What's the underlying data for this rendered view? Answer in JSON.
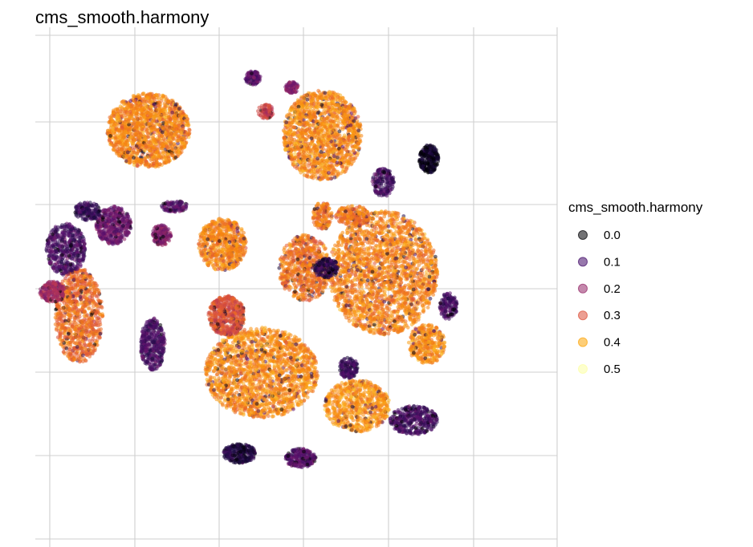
{
  "chart_data": {
    "type": "scatter",
    "title": "cms_smooth.harmony",
    "xlabel": "",
    "ylabel": "",
    "grid": true,
    "axis_tick_labels": false,
    "color_scale": "inferno",
    "point_alpha": 0.55,
    "legend": {
      "title": "cms_smooth.harmony",
      "position": "right",
      "entries": [
        {
          "label": "0.0",
          "value": 0.0,
          "color": "#000004"
        },
        {
          "label": "0.1",
          "value": 0.1,
          "color": "#420a68"
        },
        {
          "label": "0.2",
          "value": 0.2,
          "color": "#932667"
        },
        {
          "label": "0.3",
          "value": 0.3,
          "color": "#dd513a"
        },
        {
          "label": "0.4",
          "value": 0.4,
          "color": "#fca50a"
        },
        {
          "label": "0.5",
          "value": 0.5,
          "color": "#fcffa4"
        }
      ]
    },
    "clusters": [
      {
        "x": -3.4,
        "y": 3.3,
        "rx": 0.95,
        "ry": 0.78,
        "n": 1500,
        "level": 0.4
      },
      {
        "x": 0.6,
        "y": 3.2,
        "rx": 0.9,
        "ry": 0.95,
        "n": 1500,
        "level": 0.41
      },
      {
        "x": -1.7,
        "y": 0.9,
        "rx": 0.55,
        "ry": 0.55,
        "n": 650,
        "level": 0.4
      },
      {
        "x": 2.0,
        "y": 0.3,
        "rx": 1.25,
        "ry": 1.3,
        "n": 2200,
        "level": 0.4
      },
      {
        "x": -0.8,
        "y": -1.8,
        "rx": 1.3,
        "ry": 0.95,
        "n": 1900,
        "level": 0.41
      },
      {
        "x": 0.2,
        "y": 0.4,
        "rx": 0.6,
        "ry": 0.7,
        "n": 700,
        "level": 0.38
      },
      {
        "x": -5.0,
        "y": -0.6,
        "rx": 0.55,
        "ry": 1.0,
        "n": 900,
        "level": 0.37
      },
      {
        "x": -1.6,
        "y": -0.6,
        "rx": 0.42,
        "ry": 0.42,
        "n": 550,
        "level": 0.33
      },
      {
        "x": 1.4,
        "y": -2.5,
        "rx": 0.75,
        "ry": 0.55,
        "n": 700,
        "level": 0.42
      },
      {
        "x": 3.0,
        "y": -1.2,
        "rx": 0.42,
        "ry": 0.42,
        "n": 350,
        "level": 0.41
      },
      {
        "x": 1.3,
        "y": 1.5,
        "rx": 0.4,
        "ry": 0.22,
        "n": 220,
        "level": 0.38
      },
      {
        "x": 0.6,
        "y": 1.5,
        "rx": 0.22,
        "ry": 0.3,
        "n": 150,
        "level": 0.38
      },
      {
        "x": -2.8,
        "y": 1.7,
        "rx": 0.3,
        "ry": 0.12,
        "n": 110,
        "level": 0.14
      },
      {
        "x": -4.2,
        "y": 1.3,
        "rx": 0.4,
        "ry": 0.4,
        "n": 420,
        "level": 0.17
      },
      {
        "x": -5.3,
        "y": 0.8,
        "rx": 0.45,
        "ry": 0.55,
        "n": 480,
        "level": 0.12
      },
      {
        "x": -5.6,
        "y": -0.1,
        "rx": 0.3,
        "ry": 0.22,
        "n": 220,
        "level": 0.24
      },
      {
        "x": -3.3,
        "y": -1.2,
        "rx": 0.28,
        "ry": 0.55,
        "n": 380,
        "level": 0.12
      },
      {
        "x": -3.1,
        "y": 1.1,
        "rx": 0.22,
        "ry": 0.22,
        "n": 150,
        "level": 0.2
      },
      {
        "x": 0.7,
        "y": 0.4,
        "rx": 0.28,
        "ry": 0.2,
        "n": 170,
        "level": 0.08
      },
      {
        "x": 1.2,
        "y": -1.7,
        "rx": 0.22,
        "ry": 0.22,
        "n": 140,
        "level": 0.1
      },
      {
        "x": 2.7,
        "y": -2.8,
        "rx": 0.55,
        "ry": 0.3,
        "n": 380,
        "level": 0.12
      },
      {
        "x": 2.0,
        "y": 2.2,
        "rx": 0.25,
        "ry": 0.3,
        "n": 180,
        "level": 0.12
      },
      {
        "x": 3.05,
        "y": 2.7,
        "rx": 0.22,
        "ry": 0.3,
        "n": 260,
        "level": 0.03
      },
      {
        "x": -1.3,
        "y": -3.5,
        "rx": 0.38,
        "ry": 0.2,
        "n": 280,
        "level": 0.07
      },
      {
        "x": 0.1,
        "y": -3.6,
        "rx": 0.35,
        "ry": 0.2,
        "n": 240,
        "level": 0.14
      },
      {
        "x": 3.5,
        "y": -0.4,
        "rx": 0.2,
        "ry": 0.28,
        "n": 140,
        "level": 0.12
      },
      {
        "x": -4.8,
        "y": 1.6,
        "rx": 0.3,
        "ry": 0.2,
        "n": 160,
        "level": 0.1
      },
      {
        "x": -1.0,
        "y": 4.4,
        "rx": 0.18,
        "ry": 0.15,
        "n": 110,
        "level": 0.15
      },
      {
        "x": -0.7,
        "y": 3.7,
        "rx": 0.18,
        "ry": 0.15,
        "n": 90,
        "level": 0.3
      },
      {
        "x": -0.1,
        "y": 4.2,
        "rx": 0.15,
        "ry": 0.12,
        "n": 80,
        "level": 0.2
      }
    ]
  }
}
